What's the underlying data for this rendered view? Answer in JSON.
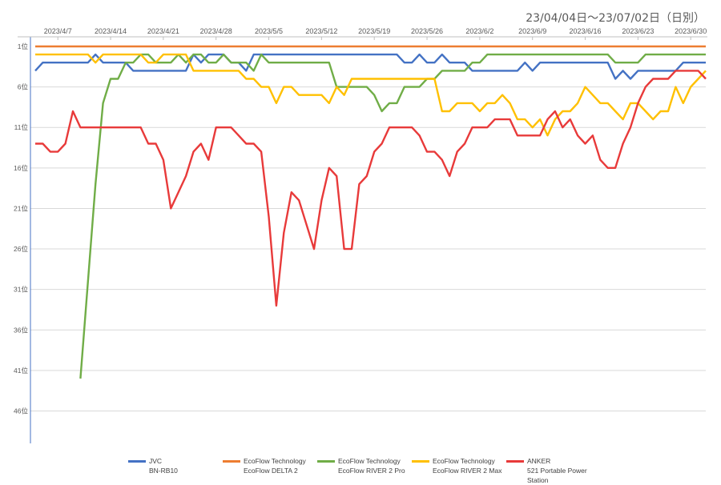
{
  "header": {
    "date_range": "23/04/04日～23/07/02日（日別）"
  },
  "chart_data": {
    "type": "line",
    "y_inverted": true,
    "ylim": [
      1,
      50
    ],
    "y_ticks": [
      1,
      6,
      11,
      16,
      21,
      26,
      31,
      36,
      41,
      46
    ],
    "y_tick_suffix": "位",
    "x_start": "2023/4/4",
    "x_end": "2023/7/2",
    "x_tick_labels": [
      "2023/4/7",
      "2023/4/14",
      "2023/4/21",
      "2023/4/28",
      "2023/5/5",
      "2023/5/12",
      "2023/5/19",
      "2023/5/26",
      "2023/6/2",
      "2023/6/9",
      "2023/6/16",
      "2023/6/23",
      "2023/6/30"
    ],
    "grid": true,
    "legend_position": "bottom",
    "series": [
      {
        "name": "JVC",
        "name2": "BN-RB10",
        "color": "#4472C4",
        "points": [
          [
            "2023/4/4",
            4
          ],
          [
            "2023/4/5",
            3
          ],
          [
            "2023/4/11",
            3
          ],
          [
            "2023/4/12",
            2
          ],
          [
            "2023/4/13",
            3
          ],
          [
            "2023/4/16",
            3
          ],
          [
            "2023/4/17",
            4
          ],
          [
            "2023/4/21",
            4
          ],
          [
            "2023/4/22",
            4
          ],
          [
            "2023/4/24",
            4
          ],
          [
            "2023/4/25",
            2
          ],
          [
            "2023/4/26",
            3
          ],
          [
            "2023/4/27",
            2
          ],
          [
            "2023/4/29",
            2
          ],
          [
            "2023/4/30",
            3
          ],
          [
            "2023/5/1",
            3
          ],
          [
            "2023/5/2",
            4
          ],
          [
            "2023/5/3",
            2
          ],
          [
            "2023/5/22",
            2
          ],
          [
            "2023/5/23",
            3
          ],
          [
            "2023/5/24",
            3
          ],
          [
            "2023/5/25",
            2
          ],
          [
            "2023/5/26",
            3
          ],
          [
            "2023/5/27",
            3
          ],
          [
            "2023/5/28",
            2
          ],
          [
            "2023/5/29",
            3
          ],
          [
            "2023/5/31",
            3
          ],
          [
            "2023/6/1",
            4
          ],
          [
            "2023/6/7",
            4
          ],
          [
            "2023/6/8",
            3
          ],
          [
            "2023/6/9",
            4
          ],
          [
            "2023/6/10",
            3
          ],
          [
            "2023/6/19",
            3
          ],
          [
            "2023/6/20",
            5
          ],
          [
            "2023/6/21",
            4
          ],
          [
            "2023/6/22",
            5
          ],
          [
            "2023/6/23",
            4
          ],
          [
            "2023/6/28",
            4
          ],
          [
            "2023/6/29",
            3
          ],
          [
            "2023/7/2",
            3
          ]
        ]
      },
      {
        "name": "EcoFlow Technology",
        "name2": "EcoFlow DELTA 2",
        "color": "#ED7D31",
        "points": [
          [
            "2023/4/4",
            1
          ],
          [
            "2023/7/2",
            1
          ]
        ]
      },
      {
        "name": "EcoFlow Technology",
        "name2": "EcoFlow RIVER 2 Pro",
        "color": "#70AD47",
        "points": [
          [
            "2023/4/10",
            42
          ],
          [
            "2023/4/11",
            30
          ],
          [
            "2023/4/12",
            18
          ],
          [
            "2023/4/13",
            8
          ],
          [
            "2023/4/14",
            5
          ],
          [
            "2023/4/15",
            5
          ],
          [
            "2023/4/16",
            3
          ],
          [
            "2023/4/17",
            3
          ],
          [
            "2023/4/18",
            2
          ],
          [
            "2023/4/19",
            2
          ],
          [
            "2023/4/20",
            3
          ],
          [
            "2023/4/22",
            3
          ],
          [
            "2023/4/23",
            2
          ],
          [
            "2023/4/24",
            3
          ],
          [
            "2023/4/25",
            2
          ],
          [
            "2023/4/26",
            2
          ],
          [
            "2023/4/27",
            3
          ],
          [
            "2023/4/28",
            3
          ],
          [
            "2023/4/29",
            2
          ],
          [
            "2023/4/30",
            3
          ],
          [
            "2023/5/2",
            3
          ],
          [
            "2023/5/3",
            4
          ],
          [
            "2023/5/4",
            2
          ],
          [
            "2023/5/5",
            3
          ],
          [
            "2023/5/13",
            3
          ],
          [
            "2023/5/14",
            6
          ],
          [
            "2023/5/18",
            6
          ],
          [
            "2023/5/19",
            7
          ],
          [
            "2023/5/20",
            9
          ],
          [
            "2023/5/21",
            8
          ],
          [
            "2023/5/22",
            8
          ],
          [
            "2023/5/23",
            6
          ],
          [
            "2023/5/25",
            6
          ],
          [
            "2023/5/26",
            5
          ],
          [
            "2023/5/27",
            5
          ],
          [
            "2023/5/28",
            4
          ],
          [
            "2023/5/31",
            4
          ],
          [
            "2023/6/1",
            3
          ],
          [
            "2023/6/2",
            3
          ],
          [
            "2023/6/3",
            2
          ],
          [
            "2023/6/19",
            2
          ],
          [
            "2023/6/20",
            3
          ],
          [
            "2023/6/23",
            3
          ],
          [
            "2023/6/24",
            2
          ],
          [
            "2023/7/2",
            2
          ]
        ]
      },
      {
        "name": "EcoFlow Technology",
        "name2": "EcoFlow RIVER 2 Max",
        "color": "#FFC000",
        "points": [
          [
            "2023/4/4",
            2
          ],
          [
            "2023/4/10",
            2
          ],
          [
            "2023/4/11",
            2
          ],
          [
            "2023/4/12",
            3
          ],
          [
            "2023/4/13",
            2
          ],
          [
            "2023/4/18",
            2
          ],
          [
            "2023/4/19",
            3
          ],
          [
            "2023/4/20",
            3
          ],
          [
            "2023/4/21",
            2
          ],
          [
            "2023/4/24",
            2
          ],
          [
            "2023/4/25",
            4
          ],
          [
            "2023/5/1",
            4
          ],
          [
            "2023/5/2",
            5
          ],
          [
            "2023/5/3",
            5
          ],
          [
            "2023/5/4",
            6
          ],
          [
            "2023/5/5",
            6
          ],
          [
            "2023/5/6",
            8
          ],
          [
            "2023/5/7",
            6
          ],
          [
            "2023/5/8",
            6
          ],
          [
            "2023/5/9",
            7
          ],
          [
            "2023/5/12",
            7
          ],
          [
            "2023/5/13",
            8
          ],
          [
            "2023/5/14",
            6
          ],
          [
            "2023/5/15",
            7
          ],
          [
            "2023/5/16",
            5
          ],
          [
            "2023/5/27",
            5
          ],
          [
            "2023/5/28",
            9
          ],
          [
            "2023/5/29",
            9
          ],
          [
            "2023/5/30",
            8
          ],
          [
            "2023/6/1",
            8
          ],
          [
            "2023/6/2",
            9
          ],
          [
            "2023/6/3",
            8
          ],
          [
            "2023/6/4",
            8
          ],
          [
            "2023/6/5",
            7
          ],
          [
            "2023/6/6",
            8
          ],
          [
            "2023/6/7",
            10
          ],
          [
            "2023/6/8",
            10
          ],
          [
            "2023/6/9",
            11
          ],
          [
            "2023/6/10",
            10
          ],
          [
            "2023/6/11",
            12
          ],
          [
            "2023/6/12",
            10
          ],
          [
            "2023/6/13",
            9
          ],
          [
            "2023/6/14",
            9
          ],
          [
            "2023/6/15",
            8
          ],
          [
            "2023/6/16",
            6
          ],
          [
            "2023/6/17",
            7
          ],
          [
            "2023/6/18",
            8
          ],
          [
            "2023/6/19",
            8
          ],
          [
            "2023/6/20",
            9
          ],
          [
            "2023/6/21",
            10
          ],
          [
            "2023/6/22",
            8
          ],
          [
            "2023/6/23",
            8
          ],
          [
            "2023/6/24",
            9
          ],
          [
            "2023/6/25",
            10
          ],
          [
            "2023/6/26",
            9
          ],
          [
            "2023/6/27",
            9
          ],
          [
            "2023/6/28",
            6
          ],
          [
            "2023/6/29",
            8
          ],
          [
            "2023/6/30",
            6
          ],
          [
            "2023/7/1",
            5
          ],
          [
            "2023/7/2",
            4
          ]
        ]
      },
      {
        "name": "ANKER",
        "name2": "521 Portable Power Station",
        "color": "#E83A3A",
        "points": [
          [
            "2023/4/4",
            13
          ],
          [
            "2023/4/5",
            13
          ],
          [
            "2023/4/6",
            14
          ],
          [
            "2023/4/7",
            14
          ],
          [
            "2023/4/8",
            13
          ],
          [
            "2023/4/9",
            9
          ],
          [
            "2023/4/10",
            11
          ],
          [
            "2023/4/18",
            11
          ],
          [
            "2023/4/19",
            13
          ],
          [
            "2023/4/20",
            13
          ],
          [
            "2023/4/21",
            15
          ],
          [
            "2023/4/22",
            21
          ],
          [
            "2023/4/23",
            19
          ],
          [
            "2023/4/24",
            17
          ],
          [
            "2023/4/25",
            14
          ],
          [
            "2023/4/26",
            13
          ],
          [
            "2023/4/27",
            15
          ],
          [
            "2023/4/28",
            11
          ],
          [
            "2023/4/29",
            11
          ],
          [
            "2023/4/30",
            11
          ],
          [
            "2023/5/1",
            12
          ],
          [
            "2023/5/2",
            13
          ],
          [
            "2023/5/3",
            13
          ],
          [
            "2023/5/4",
            14
          ],
          [
            "2023/5/5",
            22
          ],
          [
            "2023/5/6",
            33
          ],
          [
            "2023/5/7",
            24
          ],
          [
            "2023/5/8",
            19
          ],
          [
            "2023/5/9",
            20
          ],
          [
            "2023/5/10",
            23
          ],
          [
            "2023/5/11",
            26
          ],
          [
            "2023/5/12",
            20
          ],
          [
            "2023/5/13",
            16
          ],
          [
            "2023/5/14",
            17
          ],
          [
            "2023/5/15",
            26
          ],
          [
            "2023/5/16",
            26
          ],
          [
            "2023/5/17",
            18
          ],
          [
            "2023/5/18",
            17
          ],
          [
            "2023/5/19",
            14
          ],
          [
            "2023/5/20",
            13
          ],
          [
            "2023/5/21",
            11
          ],
          [
            "2023/5/24",
            11
          ],
          [
            "2023/5/25",
            12
          ],
          [
            "2023/5/26",
            14
          ],
          [
            "2023/5/27",
            14
          ],
          [
            "2023/5/28",
            15
          ],
          [
            "2023/5/29",
            17
          ],
          [
            "2023/5/30",
            14
          ],
          [
            "2023/5/31",
            13
          ],
          [
            "2023/6/1",
            11
          ],
          [
            "2023/6/2",
            11
          ],
          [
            "2023/6/3",
            11
          ],
          [
            "2023/6/4",
            10
          ],
          [
            "2023/6/6",
            10
          ],
          [
            "2023/6/7",
            12
          ],
          [
            "2023/6/10",
            12
          ],
          [
            "2023/6/11",
            10
          ],
          [
            "2023/6/12",
            9
          ],
          [
            "2023/6/13",
            11
          ],
          [
            "2023/6/14",
            10
          ],
          [
            "2023/6/15",
            12
          ],
          [
            "2023/6/16",
            13
          ],
          [
            "2023/6/17",
            12
          ],
          [
            "2023/6/18",
            15
          ],
          [
            "2023/6/19",
            16
          ],
          [
            "2023/6/20",
            16
          ],
          [
            "2023/6/21",
            13
          ],
          [
            "2023/6/22",
            11
          ],
          [
            "2023/6/23",
            8
          ],
          [
            "2023/6/24",
            6
          ],
          [
            "2023/6/25",
            5
          ],
          [
            "2023/6/27",
            5
          ],
          [
            "2023/6/28",
            4
          ],
          [
            "2023/7/1",
            4
          ],
          [
            "2023/7/2",
            5
          ]
        ]
      }
    ]
  }
}
